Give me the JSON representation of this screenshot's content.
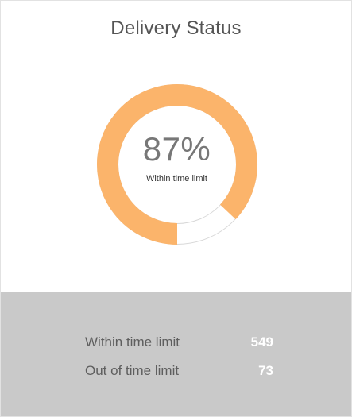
{
  "card": {
    "title": "Delivery Status"
  },
  "gauge": {
    "percent_text": "87%",
    "caption": "Within time limit",
    "fraction": 0.87,
    "fill_color": "#fbb46b",
    "track_color": "#ffffff",
    "track_border_color": "#d8d8d8"
  },
  "stats": [
    {
      "label": "Within time limit",
      "value": "549"
    },
    {
      "label": "Out of time limit",
      "value": "73"
    }
  ],
  "colors": {
    "panel_background": "#c9c9c9",
    "value_text": "#ffffff",
    "label_text": "#5e5e5e"
  }
}
